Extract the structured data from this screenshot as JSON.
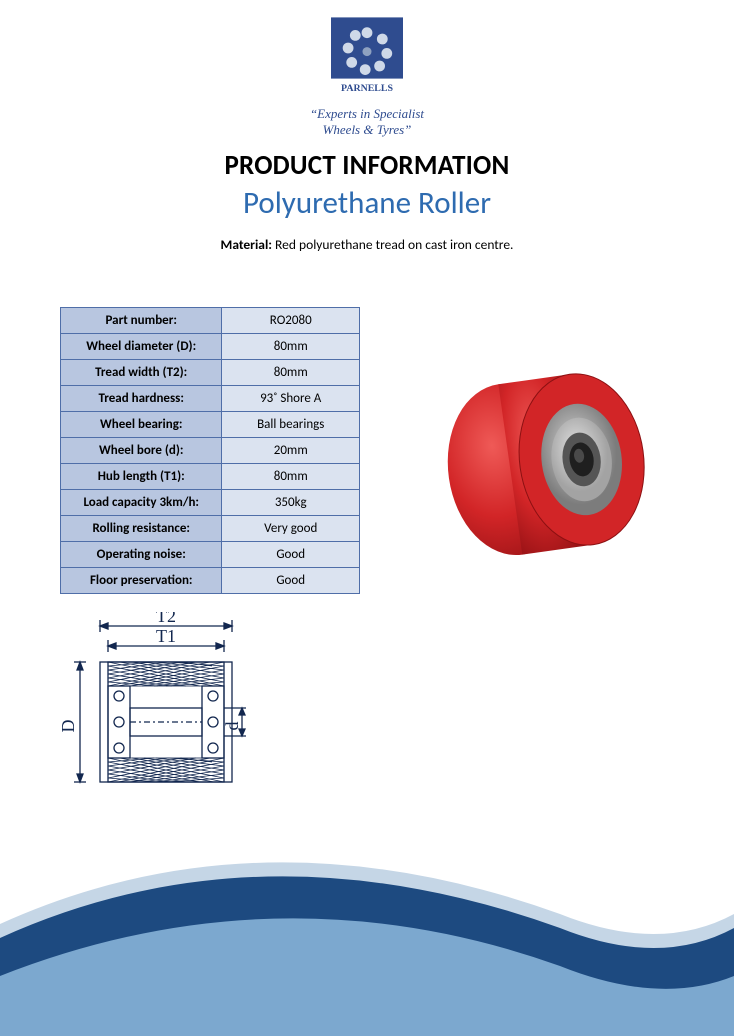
{
  "logo": {
    "brand": "PARNELLS",
    "tagline_line1": "“Experts in Specialist",
    "tagline_line2": "Wheels & Tyres”",
    "primary_color": "#2f4c8f",
    "accent_color": "#98a9c4",
    "tagline_color": "#2f4c8f"
  },
  "headings": {
    "main": "PRODUCT INFORMATION",
    "main_color": "#000000",
    "sub": "Polyurethane Roller",
    "sub_color": "#2e6bb0"
  },
  "material": {
    "label": "Material:",
    "text": "Red polyurethane tread on cast iron centre.",
    "text_color": "#000000"
  },
  "spec_table": {
    "type": "table",
    "border_color": "#4f6ea8",
    "header_bg": "#b8c6e0",
    "value_bg": "#dbe3f0",
    "text_color": "#000000",
    "rows": [
      {
        "label": "Part number:",
        "value": "RO2080"
      },
      {
        "label": "Wheel diameter (D):",
        "value": "80mm"
      },
      {
        "label": "Tread width (T2):",
        "value": "80mm"
      },
      {
        "label": "Tread hardness:",
        "value": "93˚ Shore A"
      },
      {
        "label": "Wheel bearing:",
        "value": "Ball bearings"
      },
      {
        "label": "Wheel bore (d):",
        "value": "20mm"
      },
      {
        "label": "Hub length (T1):",
        "value": "80mm"
      },
      {
        "label": "Load capacity 3km/h:",
        "value": "350kg"
      },
      {
        "label": "Rolling resistance:",
        "value": "Very good"
      },
      {
        "label": "Operating noise:",
        "value": "Good"
      },
      {
        "label": "Floor preservation:",
        "value": "Good"
      }
    ]
  },
  "product_image": {
    "description": "red polyurethane roller with metal bearing hub",
    "tread_color": "#d22527",
    "hub_outer": "#9a9a9a",
    "hub_mid": "#c7c7c7",
    "hub_inner": "#414141"
  },
  "diagram": {
    "type": "engineering-cross-section",
    "labels": {
      "T2": "T2",
      "T1": "T1",
      "D": "D",
      "d": "d"
    },
    "stroke_color": "#12274f",
    "text_color": "#12274f",
    "font_family_serif": true
  },
  "footer": {
    "swoosh_outer": "#1d4a80",
    "swoosh_inner": "#7ca8cf",
    "swoosh_top": "#c5d6e6"
  }
}
